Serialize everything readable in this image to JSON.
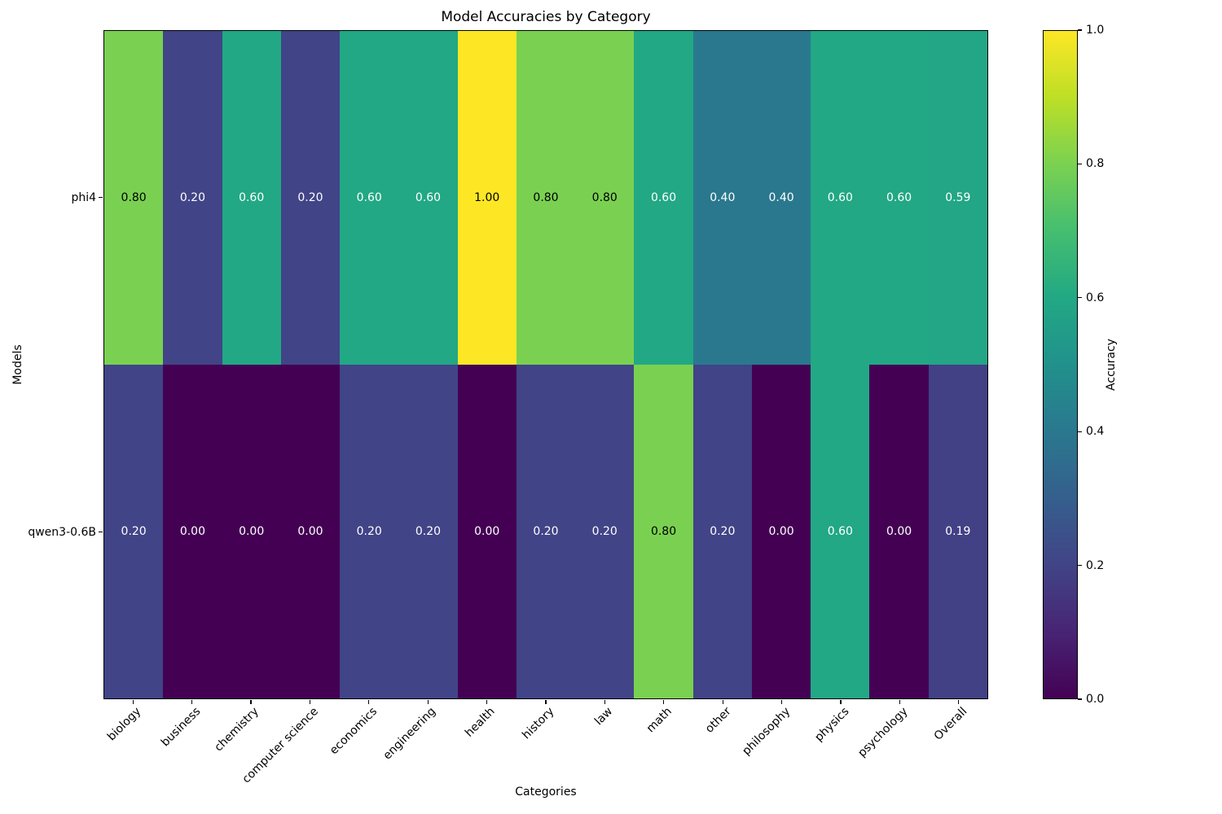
{
  "chart_data": {
    "type": "heatmap",
    "title": "Model Accuracies by Category",
    "xlabel": "Categories",
    "ylabel": "Models",
    "categories": [
      "biology",
      "business",
      "chemistry",
      "computer science",
      "economics",
      "engineering",
      "health",
      "history",
      "law",
      "math",
      "other",
      "philosophy",
      "physics",
      "psychology",
      "Overall"
    ],
    "series": [
      {
        "name": "phi4",
        "values": [
          0.8,
          0.2,
          0.6,
          0.2,
          0.6,
          0.6,
          1.0,
          0.8,
          0.8,
          0.6,
          0.4,
          0.4,
          0.6,
          0.6,
          0.59
        ]
      },
      {
        "name": "qwen3-0.6B",
        "values": [
          0.2,
          0.0,
          0.0,
          0.0,
          0.2,
          0.2,
          0.0,
          0.2,
          0.2,
          0.8,
          0.2,
          0.0,
          0.6,
          0.0,
          0.19
        ]
      }
    ],
    "value_format_decimals": 2,
    "colormap": "viridis",
    "colormap_stops": [
      [
        68,
        1,
        84
      ],
      [
        72,
        36,
        117
      ],
      [
        65,
        68,
        135
      ],
      [
        53,
        95,
        141
      ],
      [
        42,
        120,
        142
      ],
      [
        33,
        145,
        140
      ],
      [
        34,
        168,
        132
      ],
      [
        68,
        190,
        112
      ],
      [
        122,
        209,
        81
      ],
      [
        189,
        223,
        38
      ],
      [
        253,
        231,
        37
      ]
    ],
    "annotation_colors": {
      "dark_text": "#000000",
      "light_text": "#ffffff",
      "dark_text_threshold": 0.7
    },
    "colorbar": {
      "label": "Accuracy",
      "ticks": [
        1.0,
        0.8,
        0.6,
        0.4,
        0.2,
        0.0
      ],
      "range": [
        0,
        1
      ]
    },
    "grid": false,
    "legend_position": "none"
  }
}
